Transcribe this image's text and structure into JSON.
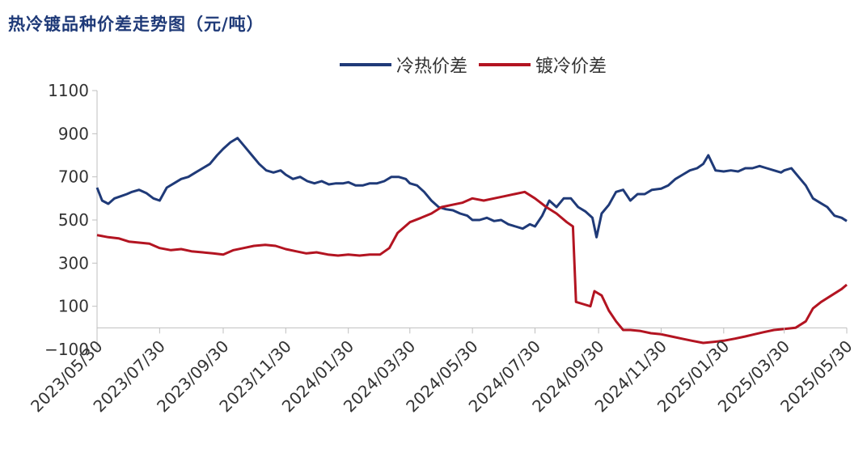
{
  "title": "热冷镀品种价差走势图（元/吨）",
  "chart_data": {
    "type": "line",
    "title": "热冷镀品种价差走势图（元/吨）",
    "xlabel": "",
    "ylabel": "",
    "ylim": [
      -100,
      1100
    ],
    "yticks": [
      -100,
      100,
      300,
      500,
      700,
      900,
      1100
    ],
    "x_tick_labels": [
      "2023/05/30",
      "2023/07/30",
      "2023/09/30",
      "2023/11/30",
      "2024/01/30",
      "2024/03/30",
      "2024/05/30",
      "2024/07/30",
      "2024/09/30",
      "2024/11/30",
      "2025/01/30",
      "2025/03/30",
      "2025/05/30"
    ],
    "grid": false,
    "legend_position": "top",
    "series": [
      {
        "name": "冷热价差",
        "color": "#1f3a78",
        "points": [
          [
            "2023-05-30",
            650
          ],
          [
            "2023-06-04",
            590
          ],
          [
            "2023-06-10",
            575
          ],
          [
            "2023-06-16",
            600
          ],
          [
            "2023-06-22",
            610
          ],
          [
            "2023-06-28",
            620
          ],
          [
            "2023-07-03",
            630
          ],
          [
            "2023-07-10",
            640
          ],
          [
            "2023-07-17",
            625
          ],
          [
            "2023-07-24",
            600
          ],
          [
            "2023-07-30",
            590
          ],
          [
            "2023-08-06",
            650
          ],
          [
            "2023-08-13",
            670
          ],
          [
            "2023-08-20",
            690
          ],
          [
            "2023-08-27",
            700
          ],
          [
            "2023-09-03",
            720
          ],
          [
            "2023-09-10",
            740
          ],
          [
            "2023-09-17",
            760
          ],
          [
            "2023-09-24",
            800
          ],
          [
            "2023-09-30",
            830
          ],
          [
            "2023-10-07",
            860
          ],
          [
            "2023-10-14",
            880
          ],
          [
            "2023-10-21",
            840
          ],
          [
            "2023-10-28",
            800
          ],
          [
            "2023-11-04",
            760
          ],
          [
            "2023-11-11",
            730
          ],
          [
            "2023-11-18",
            720
          ],
          [
            "2023-11-25",
            730
          ],
          [
            "2023-11-30",
            710
          ],
          [
            "2023-12-07",
            690
          ],
          [
            "2023-12-14",
            700
          ],
          [
            "2023-12-21",
            680
          ],
          [
            "2023-12-28",
            670
          ],
          [
            "2024-01-04",
            680
          ],
          [
            "2024-01-11",
            665
          ],
          [
            "2024-01-18",
            670
          ],
          [
            "2024-01-25",
            670
          ],
          [
            "2024-01-30",
            675
          ],
          [
            "2024-02-06",
            660
          ],
          [
            "2024-02-13",
            660
          ],
          [
            "2024-02-20",
            670
          ],
          [
            "2024-02-27",
            670
          ],
          [
            "2024-03-05",
            680
          ],
          [
            "2024-03-12",
            700
          ],
          [
            "2024-03-19",
            700
          ],
          [
            "2024-03-26",
            690
          ],
          [
            "2024-03-30",
            670
          ],
          [
            "2024-04-06",
            660
          ],
          [
            "2024-04-13",
            630
          ],
          [
            "2024-04-20",
            590
          ],
          [
            "2024-04-27",
            560
          ],
          [
            "2024-05-04",
            550
          ],
          [
            "2024-05-11",
            545
          ],
          [
            "2024-05-18",
            530
          ],
          [
            "2024-05-25",
            520
          ],
          [
            "2024-05-30",
            500
          ],
          [
            "2024-06-06",
            500
          ],
          [
            "2024-06-13",
            510
          ],
          [
            "2024-06-20",
            495
          ],
          [
            "2024-06-27",
            500
          ],
          [
            "2024-07-04",
            480
          ],
          [
            "2024-07-11",
            470
          ],
          [
            "2024-07-18",
            460
          ],
          [
            "2024-07-25",
            480
          ],
          [
            "2024-07-30",
            470
          ],
          [
            "2024-08-06",
            520
          ],
          [
            "2024-08-13",
            590
          ],
          [
            "2024-08-20",
            560
          ],
          [
            "2024-08-27",
            600
          ],
          [
            "2024-09-03",
            600
          ],
          [
            "2024-09-10",
            560
          ],
          [
            "2024-09-17",
            540
          ],
          [
            "2024-09-24",
            510
          ],
          [
            "2024-09-28",
            420
          ],
          [
            "2024-10-03",
            530
          ],
          [
            "2024-10-10",
            570
          ],
          [
            "2024-10-17",
            630
          ],
          [
            "2024-10-24",
            640
          ],
          [
            "2024-10-31",
            590
          ],
          [
            "2024-11-07",
            620
          ],
          [
            "2024-11-14",
            620
          ],
          [
            "2024-11-21",
            640
          ],
          [
            "2024-11-30",
            645
          ],
          [
            "2024-12-07",
            660
          ],
          [
            "2024-12-14",
            690
          ],
          [
            "2024-12-21",
            710
          ],
          [
            "2024-12-28",
            730
          ],
          [
            "2025-01-04",
            740
          ],
          [
            "2025-01-10",
            760
          ],
          [
            "2025-01-15",
            800
          ],
          [
            "2025-01-22",
            730
          ],
          [
            "2025-01-30",
            725
          ],
          [
            "2025-02-06",
            730
          ],
          [
            "2025-02-13",
            725
          ],
          [
            "2025-02-20",
            740
          ],
          [
            "2025-02-27",
            740
          ],
          [
            "2025-03-06",
            750
          ],
          [
            "2025-03-13",
            740
          ],
          [
            "2025-03-20",
            730
          ],
          [
            "2025-03-27",
            720
          ],
          [
            "2025-03-30",
            730
          ],
          [
            "2025-04-06",
            740
          ],
          [
            "2025-04-13",
            700
          ],
          [
            "2025-04-20",
            660
          ],
          [
            "2025-04-27",
            600
          ],
          [
            "2025-05-04",
            580
          ],
          [
            "2025-05-11",
            560
          ],
          [
            "2025-05-18",
            520
          ],
          [
            "2025-05-25",
            510
          ],
          [
            "2025-05-30",
            495
          ]
        ]
      },
      {
        "name": "镀冷价差",
        "color": "#b31421",
        "points": [
          [
            "2023-05-30",
            430
          ],
          [
            "2023-06-10",
            420
          ],
          [
            "2023-06-20",
            415
          ],
          [
            "2023-06-30",
            400
          ],
          [
            "2023-07-10",
            395
          ],
          [
            "2023-07-20",
            390
          ],
          [
            "2023-07-30",
            370
          ],
          [
            "2023-08-10",
            360
          ],
          [
            "2023-08-20",
            365
          ],
          [
            "2023-08-30",
            355
          ],
          [
            "2023-09-10",
            350
          ],
          [
            "2023-09-20",
            345
          ],
          [
            "2023-09-30",
            340
          ],
          [
            "2023-10-10",
            360
          ],
          [
            "2023-10-20",
            370
          ],
          [
            "2023-10-30",
            380
          ],
          [
            "2023-11-10",
            385
          ],
          [
            "2023-11-20",
            380
          ],
          [
            "2023-11-30",
            365
          ],
          [
            "2023-12-10",
            355
          ],
          [
            "2023-12-20",
            345
          ],
          [
            "2023-12-30",
            350
          ],
          [
            "2024-01-10",
            340
          ],
          [
            "2024-01-20",
            335
          ],
          [
            "2024-01-30",
            340
          ],
          [
            "2024-02-10",
            335
          ],
          [
            "2024-02-20",
            340
          ],
          [
            "2024-03-01",
            340
          ],
          [
            "2024-03-10",
            370
          ],
          [
            "2024-03-18",
            440
          ],
          [
            "2024-03-30",
            490
          ],
          [
            "2024-04-10",
            510
          ],
          [
            "2024-04-20",
            530
          ],
          [
            "2024-04-30",
            560
          ],
          [
            "2024-05-10",
            570
          ],
          [
            "2024-05-20",
            580
          ],
          [
            "2024-05-30",
            600
          ],
          [
            "2024-06-10",
            590
          ],
          [
            "2024-06-20",
            600
          ],
          [
            "2024-06-30",
            610
          ],
          [
            "2024-07-10",
            620
          ],
          [
            "2024-07-20",
            630
          ],
          [
            "2024-07-30",
            600
          ],
          [
            "2024-08-10",
            560
          ],
          [
            "2024-08-20",
            530
          ],
          [
            "2024-08-30",
            490
          ],
          [
            "2024-09-05",
            470
          ],
          [
            "2024-09-08",
            120
          ],
          [
            "2024-09-15",
            110
          ],
          [
            "2024-09-22",
            100
          ],
          [
            "2024-09-26",
            170
          ],
          [
            "2024-10-03",
            150
          ],
          [
            "2024-10-10",
            80
          ],
          [
            "2024-10-17",
            30
          ],
          [
            "2024-10-24",
            -10
          ],
          [
            "2024-10-31",
            -10
          ],
          [
            "2024-11-10",
            -15
          ],
          [
            "2024-11-20",
            -25
          ],
          [
            "2024-11-30",
            -30
          ],
          [
            "2024-12-10",
            -40
          ],
          [
            "2024-12-20",
            -50
          ],
          [
            "2024-12-30",
            -60
          ],
          [
            "2025-01-10",
            -70
          ],
          [
            "2025-01-20",
            -65
          ],
          [
            "2025-01-30",
            -60
          ],
          [
            "2025-02-10",
            -50
          ],
          [
            "2025-02-20",
            -40
          ],
          [
            "2025-03-01",
            -30
          ],
          [
            "2025-03-10",
            -20
          ],
          [
            "2025-03-20",
            -10
          ],
          [
            "2025-03-30",
            -5
          ],
          [
            "2025-04-10",
            0
          ],
          [
            "2025-04-20",
            30
          ],
          [
            "2025-04-27",
            90
          ],
          [
            "2025-05-05",
            120
          ],
          [
            "2025-05-15",
            150
          ],
          [
            "2025-05-25",
            180
          ],
          [
            "2025-05-30",
            200
          ]
        ]
      }
    ]
  }
}
